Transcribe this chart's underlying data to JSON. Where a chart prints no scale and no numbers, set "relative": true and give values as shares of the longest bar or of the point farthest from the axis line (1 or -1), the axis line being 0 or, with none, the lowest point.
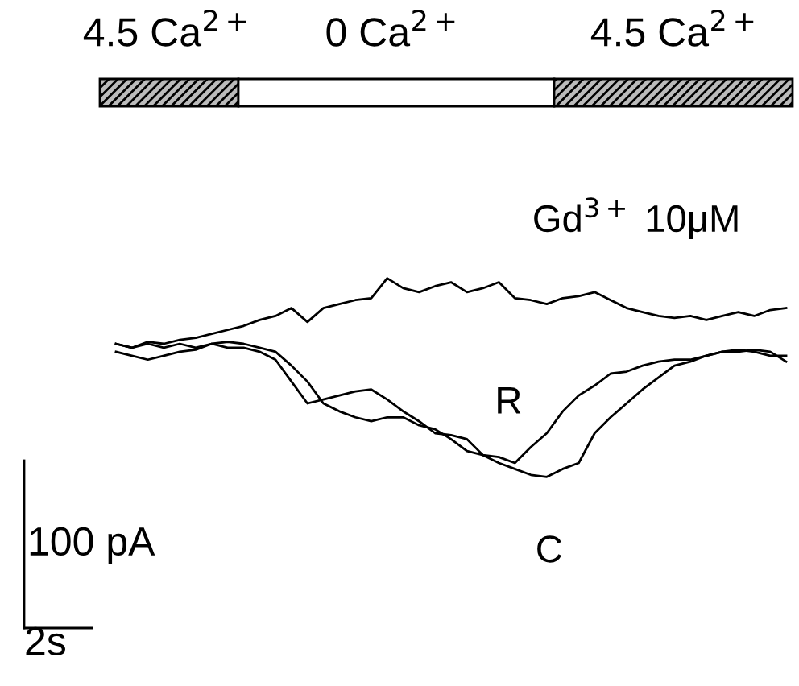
{
  "chart_data": {
    "type": "line",
    "relative": true,
    "legend": false,
    "marker": "none",
    "line_style": "solid",
    "categories": [
      null,
      null,
      null,
      null,
      null,
      null,
      null,
      null,
      null,
      null,
      null,
      null,
      null,
      null,
      null,
      null,
      null,
      null,
      null,
      null,
      null,
      null,
      null,
      null,
      null,
      null,
      null,
      null,
      null,
      null,
      null,
      null,
      null,
      null,
      null,
      null,
      null,
      null,
      null,
      null,
      null,
      null,
      null
    ],
    "series": [
      {
        "name": "Gd$^{3+}$ 10μM",
        "color": "#000000",
        "values": [
          0.67,
          0.65,
          0.68,
          0.67,
          0.69,
          0.7,
          0.72,
          0.74,
          0.76,
          0.79,
          0.81,
          0.85,
          0.78,
          0.85,
          0.87,
          0.89,
          0.9,
          1.0,
          0.95,
          0.93,
          0.96,
          0.98,
          0.93,
          0.95,
          0.98,
          0.9,
          0.89,
          0.87,
          0.9,
          0.91,
          0.93,
          0.89,
          0.85,
          0.83,
          0.81,
          0.8,
          0.81,
          0.79,
          0.81,
          0.83,
          0.81,
          0.84,
          0.85
        ]
      },
      {
        "name": "R",
        "color": "#000000",
        "values": [
          0.67,
          0.65,
          0.67,
          0.65,
          0.67,
          0.65,
          0.67,
          0.68,
          0.67,
          0.65,
          0.63,
          0.56,
          0.48,
          0.37,
          0.33,
          0.3,
          0.28,
          0.3,
          0.3,
          0.26,
          0.24,
          0.19,
          0.13,
          0.11,
          0.1,
          0.07,
          0.15,
          0.22,
          0.33,
          0.41,
          0.46,
          0.52,
          0.53,
          0.56,
          0.58,
          0.59,
          0.59,
          0.61,
          0.63,
          0.64,
          0.63,
          0.61,
          0.61
        ]
      },
      {
        "name": "C",
        "color": "#000000",
        "values": [
          0.63,
          0.61,
          0.59,
          0.61,
          0.63,
          0.64,
          0.67,
          0.65,
          0.65,
          0.63,
          0.59,
          0.48,
          0.37,
          0.39,
          0.41,
          0.43,
          0.44,
          0.39,
          0.33,
          0.28,
          0.22,
          0.21,
          0.19,
          0.11,
          0.07,
          0.04,
          0.01,
          0.0,
          0.04,
          0.07,
          0.22,
          0.3,
          0.37,
          0.44,
          0.5,
          0.56,
          0.58,
          0.61,
          0.63,
          0.63,
          0.64,
          0.63,
          0.58
        ]
      }
    ],
    "annotations": [
      "4.5 Ca$^{2+}$",
      "0 Ca$^{2+}$",
      "4.5 Ca$^{2+}$",
      "100 pA",
      "2s"
    ]
  }
}
